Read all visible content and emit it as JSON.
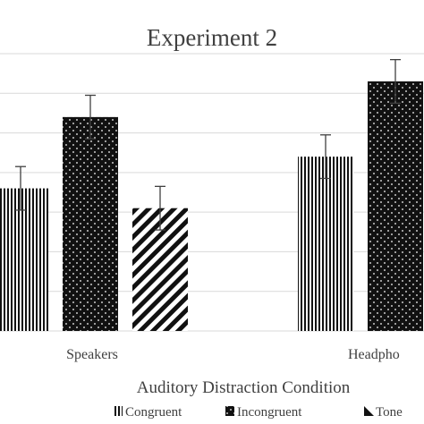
{
  "chart_data": {
    "type": "bar",
    "title": "Experiment 2",
    "xlabel": "Auditory Distraction Condition",
    "ylabel": "",
    "categories": [
      "Speakers",
      "Headphones"
    ],
    "category_labels_visible": [
      "Speakers",
      "Headpho"
    ],
    "series": [
      {
        "name": "Congruent",
        "values": [
          3.6,
          4.4
        ],
        "errors": [
          0.55,
          0.55
        ],
        "pattern": "vertical-lines"
      },
      {
        "name": "Incongruent",
        "values": [
          5.4,
          6.3
        ],
        "errors": [
          0.55,
          0.55
        ],
        "pattern": "dots"
      },
      {
        "name": "Tone",
        "values": [
          3.1,
          null
        ],
        "errors": [
          0.55,
          null
        ],
        "pattern": "diagonal-stripes"
      }
    ],
    "legend_visible": [
      "Congruent",
      "Incongruent",
      "Tone"
    ],
    "ylim": [
      0,
      7
    ],
    "grid": true,
    "legend_position": "bottom",
    "colors": {
      "ink": "#111111",
      "grid": "#d9d9d9",
      "text": "#404040"
    }
  }
}
